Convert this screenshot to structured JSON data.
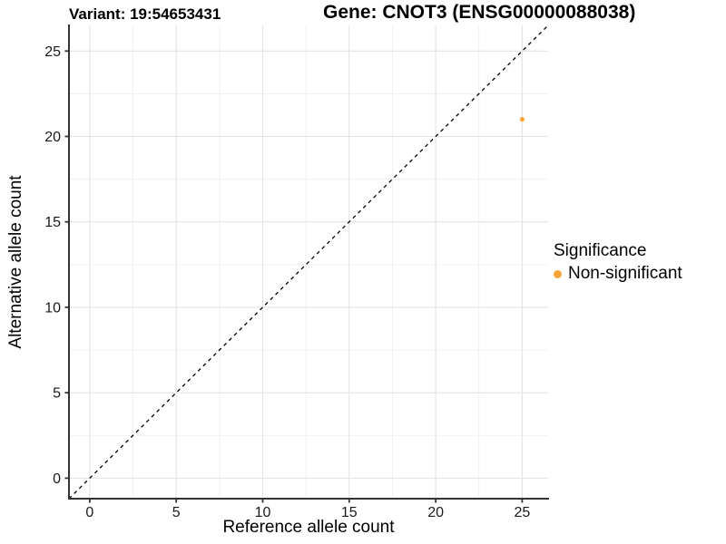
{
  "titles": {
    "variant": "Variant: 19:54653431",
    "gene": "Gene: CNOT3 (ENSG00000088038)"
  },
  "chart_data": {
    "type": "scatter",
    "title": "Variant: 19:54653431   Gene: CNOT3 (ENSG00000088038)",
    "xlabel": "Reference allele count",
    "ylabel": "Alternative allele count",
    "xlim": [
      -1.2,
      26.5
    ],
    "ylim": [
      -1.2,
      26.5
    ],
    "x_ticks": [
      0,
      5,
      10,
      15,
      20,
      25
    ],
    "y_ticks": [
      0,
      5,
      10,
      15,
      20,
      25
    ],
    "x_minor_ticks": [
      2.5,
      7.5,
      12.5,
      17.5,
      22.5
    ],
    "y_minor_ticks": [
      2.5,
      7.5,
      12.5,
      17.5,
      22.5
    ],
    "grid": "major+minor",
    "identity_line": {
      "slope": 1,
      "intercept": 0,
      "linetype": "dashed",
      "color": "#000000"
    },
    "series": [
      {
        "name": "Non-significant",
        "color": "#FAA43A",
        "points": [
          {
            "x": 25,
            "y": 21
          }
        ]
      }
    ],
    "legend": {
      "title": "Significance",
      "position": "right",
      "entries": [
        {
          "label": "Non-significant",
          "color": "#FAA43A"
        }
      ]
    },
    "style": {
      "axis_color": "#333333",
      "grid_major_color": "#E3E3E3",
      "grid_minor_color": "#F0F0F0",
      "background": "#FFFFFF"
    }
  }
}
